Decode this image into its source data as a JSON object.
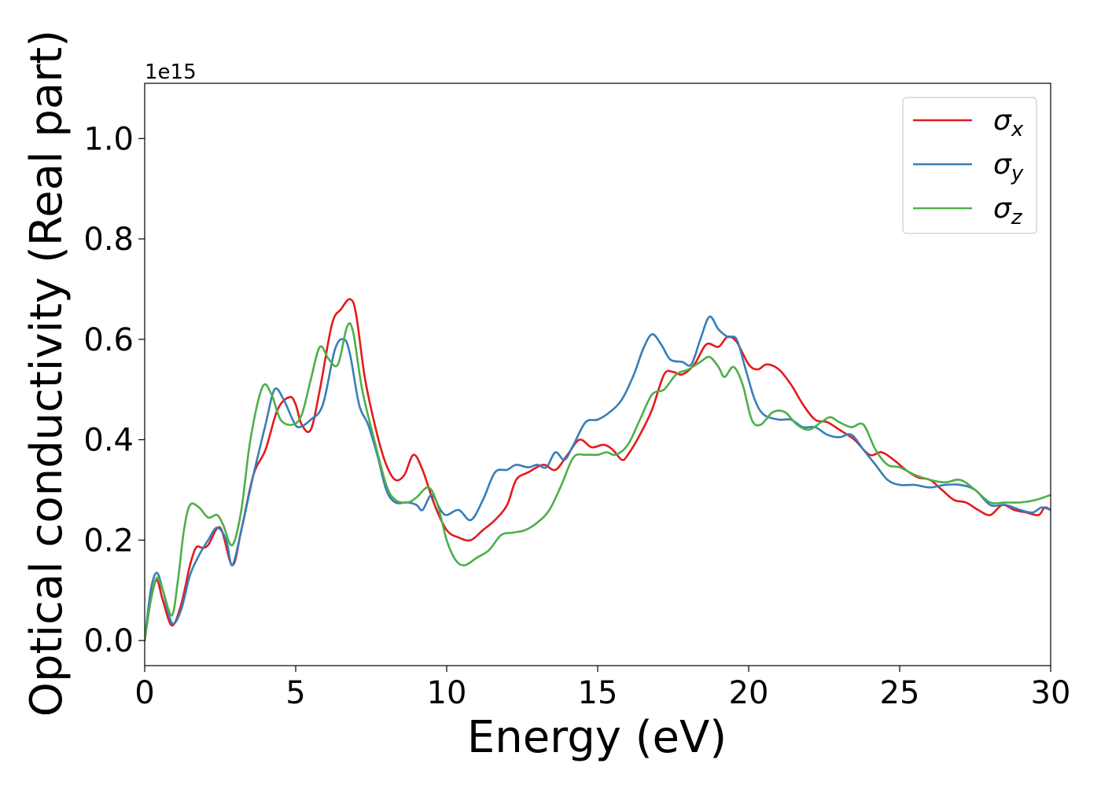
{
  "chart_data": {
    "type": "line",
    "title": "",
    "xlabel": "Energy (eV)",
    "ylabel": "Optical conductivity (Real part)",
    "y_offset_text": "1e15",
    "xlim": [
      0,
      30
    ],
    "ylim": [
      -0.05,
      1.11
    ],
    "x_ticks": [
      0,
      5,
      10,
      15,
      20,
      25,
      30
    ],
    "x_tick_labels": [
      "0",
      "5",
      "10",
      "15",
      "20",
      "25",
      "30"
    ],
    "y_ticks": [
      0.0,
      0.2,
      0.4,
      0.6,
      0.8,
      1.0
    ],
    "y_tick_labels": [
      "0.0",
      "0.2",
      "0.4",
      "0.6",
      "0.8",
      "1.0"
    ],
    "grid": false,
    "legend_position": "top-right",
    "series": [
      {
        "name": "σx",
        "legend_symbol": "σ",
        "legend_subscript": "x",
        "color": "#e41a1c",
        "points": [
          [
            0,
            0.0
          ],
          [
            0.2,
            0.08
          ],
          [
            0.4,
            0.12
          ],
          [
            0.6,
            0.08
          ],
          [
            0.9,
            0.03
          ],
          [
            1.2,
            0.07
          ],
          [
            1.5,
            0.15
          ],
          [
            1.7,
            0.185
          ],
          [
            1.9,
            0.185
          ],
          [
            2.1,
            0.19
          ],
          [
            2.5,
            0.225
          ],
          [
            2.9,
            0.15
          ],
          [
            3.2,
            0.22
          ],
          [
            3.6,
            0.33
          ],
          [
            4.0,
            0.38
          ],
          [
            4.4,
            0.46
          ],
          [
            4.8,
            0.485
          ],
          [
            5.0,
            0.47
          ],
          [
            5.2,
            0.43
          ],
          [
            5.5,
            0.42
          ],
          [
            5.8,
            0.5
          ],
          [
            6.2,
            0.63
          ],
          [
            6.5,
            0.66
          ],
          [
            6.8,
            0.68
          ],
          [
            7.0,
            0.65
          ],
          [
            7.3,
            0.52
          ],
          [
            7.7,
            0.41
          ],
          [
            8.0,
            0.35
          ],
          [
            8.3,
            0.32
          ],
          [
            8.6,
            0.33
          ],
          [
            8.9,
            0.37
          ],
          [
            9.2,
            0.34
          ],
          [
            9.6,
            0.27
          ],
          [
            10.0,
            0.22
          ],
          [
            10.4,
            0.205
          ],
          [
            10.8,
            0.2
          ],
          [
            11.2,
            0.22
          ],
          [
            11.6,
            0.24
          ],
          [
            12.0,
            0.27
          ],
          [
            12.3,
            0.32
          ],
          [
            12.7,
            0.335
          ],
          [
            13.2,
            0.35
          ],
          [
            13.6,
            0.34
          ],
          [
            14.0,
            0.37
          ],
          [
            14.4,
            0.4
          ],
          [
            14.8,
            0.385
          ],
          [
            15.2,
            0.39
          ],
          [
            15.5,
            0.38
          ],
          [
            15.8,
            0.36
          ],
          [
            16.0,
            0.37
          ],
          [
            16.4,
            0.41
          ],
          [
            16.8,
            0.46
          ],
          [
            17.2,
            0.53
          ],
          [
            17.5,
            0.535
          ],
          [
            17.8,
            0.53
          ],
          [
            18.2,
            0.55
          ],
          [
            18.6,
            0.59
          ],
          [
            19.0,
            0.585
          ],
          [
            19.3,
            0.605
          ],
          [
            19.6,
            0.595
          ],
          [
            20.0,
            0.55
          ],
          [
            20.3,
            0.54
          ],
          [
            20.6,
            0.55
          ],
          [
            21.0,
            0.54
          ],
          [
            21.4,
            0.51
          ],
          [
            21.8,
            0.47
          ],
          [
            22.2,
            0.44
          ],
          [
            22.6,
            0.435
          ],
          [
            23.0,
            0.42
          ],
          [
            23.5,
            0.4
          ],
          [
            24.0,
            0.37
          ],
          [
            24.4,
            0.375
          ],
          [
            24.8,
            0.36
          ],
          [
            25.2,
            0.34
          ],
          [
            25.6,
            0.325
          ],
          [
            26.0,
            0.32
          ],
          [
            26.4,
            0.3
          ],
          [
            26.8,
            0.28
          ],
          [
            27.2,
            0.275
          ],
          [
            27.6,
            0.26
          ],
          [
            28.0,
            0.25
          ],
          [
            28.4,
            0.27
          ],
          [
            28.8,
            0.26
          ],
          [
            29.2,
            0.255
          ],
          [
            29.6,
            0.25
          ],
          [
            29.8,
            0.265
          ],
          [
            30.0,
            0.26
          ]
        ]
      },
      {
        "name": "σy",
        "legend_symbol": "σ",
        "legend_subscript": "y",
        "color": "#377eb8",
        "points": [
          [
            0,
            0.0
          ],
          [
            0.2,
            0.1
          ],
          [
            0.4,
            0.135
          ],
          [
            0.6,
            0.1
          ],
          [
            0.9,
            0.035
          ],
          [
            1.2,
            0.06
          ],
          [
            1.5,
            0.13
          ],
          [
            1.8,
            0.17
          ],
          [
            2.1,
            0.2
          ],
          [
            2.4,
            0.225
          ],
          [
            2.7,
            0.2
          ],
          [
            2.9,
            0.15
          ],
          [
            3.2,
            0.22
          ],
          [
            3.6,
            0.33
          ],
          [
            4.0,
            0.43
          ],
          [
            4.3,
            0.5
          ],
          [
            4.6,
            0.48
          ],
          [
            4.9,
            0.44
          ],
          [
            5.1,
            0.425
          ],
          [
            5.5,
            0.44
          ],
          [
            5.9,
            0.47
          ],
          [
            6.3,
            0.58
          ],
          [
            6.6,
            0.6
          ],
          [
            6.8,
            0.57
          ],
          [
            7.1,
            0.47
          ],
          [
            7.4,
            0.43
          ],
          [
            7.7,
            0.37
          ],
          [
            8.0,
            0.3
          ],
          [
            8.3,
            0.275
          ],
          [
            8.7,
            0.275
          ],
          [
            9.0,
            0.27
          ],
          [
            9.2,
            0.26
          ],
          [
            9.5,
            0.29
          ],
          [
            9.8,
            0.26
          ],
          [
            10.0,
            0.25
          ],
          [
            10.4,
            0.26
          ],
          [
            10.8,
            0.24
          ],
          [
            11.2,
            0.28
          ],
          [
            11.6,
            0.335
          ],
          [
            12.0,
            0.34
          ],
          [
            12.3,
            0.35
          ],
          [
            12.7,
            0.345
          ],
          [
            13.0,
            0.35
          ],
          [
            13.3,
            0.345
          ],
          [
            13.6,
            0.375
          ],
          [
            13.9,
            0.36
          ],
          [
            14.2,
            0.39
          ],
          [
            14.6,
            0.435
          ],
          [
            15.0,
            0.44
          ],
          [
            15.4,
            0.455
          ],
          [
            15.8,
            0.48
          ],
          [
            16.2,
            0.53
          ],
          [
            16.5,
            0.58
          ],
          [
            16.8,
            0.61
          ],
          [
            17.1,
            0.59
          ],
          [
            17.4,
            0.56
          ],
          [
            17.8,
            0.555
          ],
          [
            18.1,
            0.55
          ],
          [
            18.4,
            0.6
          ],
          [
            18.7,
            0.645
          ],
          [
            19.0,
            0.62
          ],
          [
            19.3,
            0.605
          ],
          [
            19.6,
            0.6
          ],
          [
            19.9,
            0.54
          ],
          [
            20.2,
            0.48
          ],
          [
            20.5,
            0.45
          ],
          [
            21.0,
            0.44
          ],
          [
            21.4,
            0.44
          ],
          [
            21.8,
            0.425
          ],
          [
            22.2,
            0.425
          ],
          [
            22.6,
            0.41
          ],
          [
            23.0,
            0.405
          ],
          [
            23.4,
            0.41
          ],
          [
            23.8,
            0.38
          ],
          [
            24.2,
            0.35
          ],
          [
            24.6,
            0.32
          ],
          [
            25.0,
            0.31
          ],
          [
            25.5,
            0.31
          ],
          [
            26.0,
            0.305
          ],
          [
            26.5,
            0.31
          ],
          [
            27.0,
            0.31
          ],
          [
            27.5,
            0.3
          ],
          [
            28.0,
            0.27
          ],
          [
            28.5,
            0.27
          ],
          [
            29.0,
            0.26
          ],
          [
            29.4,
            0.255
          ],
          [
            29.7,
            0.265
          ],
          [
            30.0,
            0.26
          ]
        ]
      },
      {
        "name": "σz",
        "legend_symbol": "σ",
        "legend_subscript": "z",
        "color": "#4daf4a",
        "points": [
          [
            0,
            0.0
          ],
          [
            0.2,
            0.08
          ],
          [
            0.4,
            0.125
          ],
          [
            0.6,
            0.1
          ],
          [
            0.9,
            0.05
          ],
          [
            1.1,
            0.12
          ],
          [
            1.3,
            0.22
          ],
          [
            1.5,
            0.27
          ],
          [
            1.8,
            0.265
          ],
          [
            2.1,
            0.245
          ],
          [
            2.4,
            0.25
          ],
          [
            2.6,
            0.23
          ],
          [
            2.9,
            0.19
          ],
          [
            3.2,
            0.26
          ],
          [
            3.5,
            0.4
          ],
          [
            3.9,
            0.505
          ],
          [
            4.2,
            0.49
          ],
          [
            4.5,
            0.44
          ],
          [
            4.9,
            0.43
          ],
          [
            5.2,
            0.45
          ],
          [
            5.5,
            0.52
          ],
          [
            5.8,
            0.585
          ],
          [
            6.1,
            0.56
          ],
          [
            6.4,
            0.55
          ],
          [
            6.7,
            0.625
          ],
          [
            6.9,
            0.615
          ],
          [
            7.2,
            0.5
          ],
          [
            7.6,
            0.4
          ],
          [
            8.0,
            0.31
          ],
          [
            8.3,
            0.28
          ],
          [
            8.7,
            0.275
          ],
          [
            9.0,
            0.285
          ],
          [
            9.4,
            0.305
          ],
          [
            9.7,
            0.27
          ],
          [
            10.0,
            0.2
          ],
          [
            10.3,
            0.16
          ],
          [
            10.6,
            0.15
          ],
          [
            11.0,
            0.165
          ],
          [
            11.4,
            0.18
          ],
          [
            11.8,
            0.21
          ],
          [
            12.2,
            0.215
          ],
          [
            12.6,
            0.22
          ],
          [
            13.0,
            0.235
          ],
          [
            13.4,
            0.26
          ],
          [
            13.8,
            0.31
          ],
          [
            14.2,
            0.365
          ],
          [
            14.6,
            0.37
          ],
          [
            15.0,
            0.37
          ],
          [
            15.3,
            0.375
          ],
          [
            15.6,
            0.37
          ],
          [
            16.0,
            0.39
          ],
          [
            16.4,
            0.44
          ],
          [
            16.8,
            0.49
          ],
          [
            17.2,
            0.5
          ],
          [
            17.6,
            0.53
          ],
          [
            18.0,
            0.54
          ],
          [
            18.4,
            0.555
          ],
          [
            18.7,
            0.565
          ],
          [
            19.0,
            0.545
          ],
          [
            19.2,
            0.525
          ],
          [
            19.5,
            0.545
          ],
          [
            19.8,
            0.51
          ],
          [
            20.1,
            0.44
          ],
          [
            20.4,
            0.43
          ],
          [
            20.8,
            0.455
          ],
          [
            21.2,
            0.455
          ],
          [
            21.6,
            0.43
          ],
          [
            22.0,
            0.42
          ],
          [
            22.4,
            0.435
          ],
          [
            22.7,
            0.445
          ],
          [
            23.0,
            0.435
          ],
          [
            23.4,
            0.425
          ],
          [
            23.8,
            0.43
          ],
          [
            24.2,
            0.38
          ],
          [
            24.6,
            0.35
          ],
          [
            25.0,
            0.345
          ],
          [
            25.5,
            0.33
          ],
          [
            26.0,
            0.32
          ],
          [
            26.5,
            0.315
          ],
          [
            27.0,
            0.32
          ],
          [
            27.5,
            0.3
          ],
          [
            28.0,
            0.275
          ],
          [
            28.5,
            0.275
          ],
          [
            29.0,
            0.275
          ],
          [
            29.5,
            0.28
          ],
          [
            30.0,
            0.29
          ]
        ]
      }
    ]
  }
}
